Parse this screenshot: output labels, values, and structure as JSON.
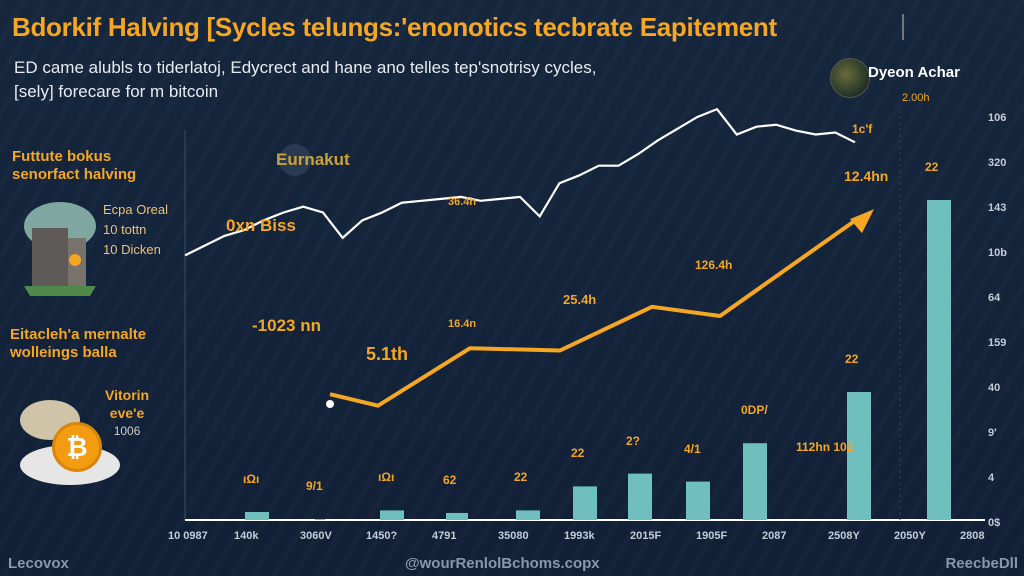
{
  "header": {
    "title": "Bdorkif Halving [Sycles telungs:'enonotics tecbrate Eapitement",
    "subtitle_line1": "ED came alubls to tiderlatoj, Edycrect and hane ano telles tep'snotrisy cycles,",
    "subtitle_line2": "[sely] forecare for m bitcoin",
    "author": "Dyeon Achar",
    "author_time": "2.00h"
  },
  "sidebar": {
    "heading1": "Futtute bokus senorfact halving",
    "building_text": [
      "Ecpa Oreal",
      "10 tottn",
      "10 Dicken"
    ],
    "heading2": "Eitacleh'a mernalte wolleings balla",
    "coin_text": [
      "Vitorin",
      "eve'e",
      "1006"
    ]
  },
  "chart_data": {
    "type": "bar",
    "title": "",
    "logo_text": "Eurnakut",
    "x_tick_labels": [
      "10 0987",
      "140k",
      "3060V",
      "1450?",
      "4791",
      "35080",
      "1993k",
      "2015F",
      "1905F",
      "2087",
      "2508Y",
      "2050Y",
      "2808"
    ],
    "y_tick_labels_right": [
      "106",
      "320",
      "143",
      "10b",
      "64",
      "159",
      "40",
      "9'",
      "4",
      "0$"
    ],
    "ylim": [
      0,
      100
    ],
    "bars": [
      {
        "value": 2.5,
        "label": "ıΩı"
      },
      {
        "value": 0.3,
        "label": "9/1"
      },
      {
        "value": 3,
        "label": "ıΩı"
      },
      {
        "value": 2.2,
        "label": "62"
      },
      {
        "value": 3,
        "label": "22"
      },
      {
        "value": 10.5,
        "label": "22"
      },
      {
        "value": 14.5,
        "label": "2?"
      },
      {
        "value": 12,
        "label": "4/1"
      },
      {
        "value": 24,
        "label": "0DP/"
      },
      {
        "value": 0,
        "label": "112hn 102"
      },
      {
        "value": 40,
        "label": "22"
      },
      {
        "value": 100,
        "label": "22"
      }
    ],
    "series": [
      {
        "name": "price",
        "color": "#ffffff",
        "values": [
          68,
          73,
          78,
          81,
          86,
          90,
          93,
          90,
          77,
          86,
          90,
          95,
          96,
          97,
          98,
          96,
          97,
          98,
          88,
          105,
          109,
          114,
          114,
          120,
          127,
          133,
          139,
          143,
          130,
          134,
          135,
          132,
          130,
          131,
          126
        ]
      },
      {
        "name": "trend",
        "color": "#f5a623",
        "values": [
          36,
          31,
          56,
          55,
          74,
          70,
          113
        ]
      }
    ],
    "annotations": [
      "0xn Biss",
      "-1023 nn",
      "5.1th",
      "36.4h",
      "16.4n",
      "25.4h",
      "126.4h",
      "12.4hn",
      "1c'f",
      "2.00h"
    ]
  },
  "footer": {
    "left": "Lecovox",
    "center": "@wourRenlolBchoms.copx",
    "right": "ReecbeDll"
  },
  "colors": {
    "accent": "#f5a623",
    "bar": "#6fbfbf",
    "bg": "#13233a"
  }
}
